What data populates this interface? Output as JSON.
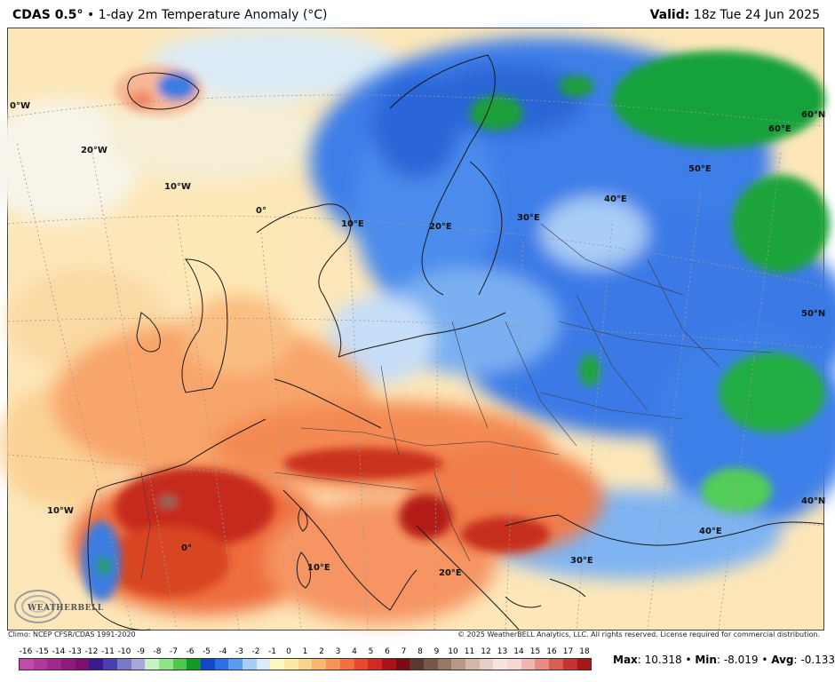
{
  "header": {
    "model": "CDAS 0.5°",
    "separator": "•",
    "product": "1-day 2m Temperature Anomaly (°C)",
    "valid_label": "Valid:",
    "valid_value": "18z Tue 24 Jun 2025"
  },
  "map": {
    "coord_labels": {
      "lon_0w": "0°W",
      "lon_20w": "20°W",
      "lon_10w_top": "10°W",
      "lon_0": "0°",
      "lon_10e_top": "10°E",
      "lon_20e_top": "20°E",
      "lon_30e_top": "30°E",
      "lon_40e_top": "40°E",
      "lon_50e": "50°E",
      "lon_60e": "60°E",
      "lat_60n": "60°N",
      "lat_50n": "50°N",
      "lat_40n": "40°N",
      "lon_10w_bottom": "10°W",
      "lon_0_bottom": "0°",
      "lon_10e_bottom": "10°E",
      "lon_20e_bottom": "20°E",
      "lon_30e_bottom": "30°E",
      "lon_40e_bottom": "40°E"
    },
    "logo_text": "WEATHERBELL"
  },
  "footer": {
    "climo": "Climo: NCEP CFSR/CDAS 1991-2020",
    "copyright": "© 2025 WeatherBELL Analytics, LLC. All rights reserved. License required for commercial distribution."
  },
  "colorbar": {
    "labels": [
      "-16",
      "-15",
      "-14",
      "-13",
      "-12",
      "-11",
      "-10",
      "-9",
      "-8",
      "-7",
      "-6",
      "-5",
      "-4",
      "-3",
      "-2",
      "-1",
      "0",
      "1",
      "2",
      "3",
      "4",
      "5",
      "6",
      "7",
      "8",
      "9",
      "10",
      "11",
      "12",
      "13",
      "14",
      "15",
      "16",
      "17",
      "18"
    ],
    "colors": [
      "#c04ca8",
      "#b0389a",
      "#a0288c",
      "#8f1a7e",
      "#7d0f6f",
      "#3a1a8c",
      "#4a3fb0",
      "#7a78c8",
      "#a9a6da",
      "#c9f2c2",
      "#8fe38a",
      "#4ec94a",
      "#139a2a",
      "#1248c8",
      "#2a70e0",
      "#5b9cf0",
      "#a7cdf7",
      "#dcebfb",
      "#fdf6c0",
      "#fde9a6",
      "#fcd38a",
      "#fbb56e",
      "#f89456",
      "#f36e40",
      "#e74a2e",
      "#cf2b1e",
      "#a8141a",
      "#7a0a14",
      "#5a3a30",
      "#7a5646",
      "#9a7664",
      "#b99686",
      "#d3b6a8",
      "#e6d0c6",
      "#f3e6e0",
      "#f7d7d3",
      "#f0b7b0",
      "#e68c84",
      "#d65f58",
      "#c43530",
      "#a6191a"
    ]
  },
  "stats": {
    "max_label": "Max",
    "max_value": "10.318",
    "min_label": "Min",
    "min_value": "-8.019",
    "avg_label": "Avg",
    "avg_value": "-0.133"
  }
}
